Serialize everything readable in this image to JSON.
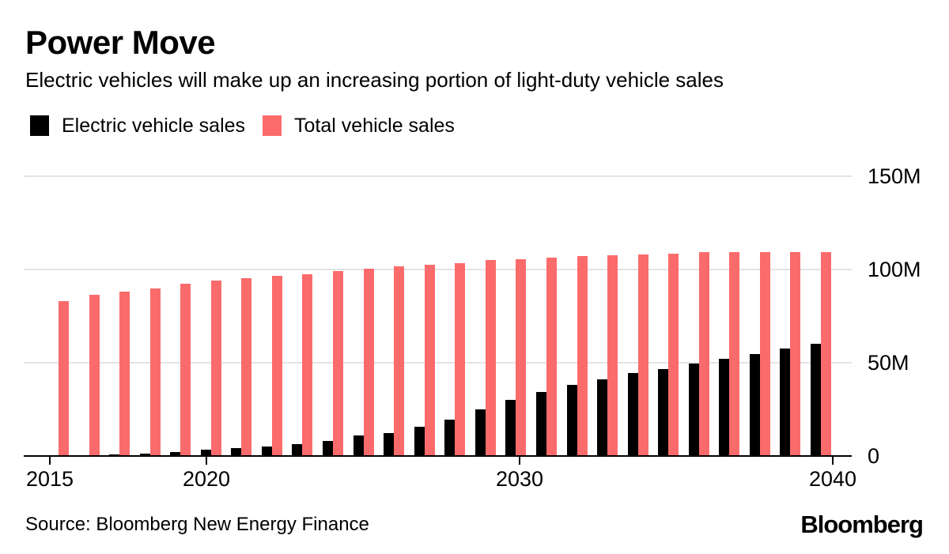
{
  "header": {
    "title": "Power Move",
    "subtitle": "Electric vehicles will make up an increasing portion of light-duty vehicle sales"
  },
  "legend": [
    {
      "label": "Electric vehicle sales",
      "color": "#000000"
    },
    {
      "label": "Total vehicle sales",
      "color": "#fb6b6c"
    }
  ],
  "chart_data": {
    "type": "bar",
    "title": "Power Move",
    "subtitle": "Electric vehicles will make up an increasing portion of light-duty vehicle sales",
    "categories": [
      2015,
      2016,
      2017,
      2018,
      2019,
      2020,
      2021,
      2022,
      2023,
      2024,
      2025,
      2026,
      2027,
      2028,
      2029,
      2030,
      2031,
      2032,
      2033,
      2034,
      2035,
      2036,
      2037,
      2038,
      2039,
      2040
    ],
    "series": [
      {
        "name": "Electric vehicle sales",
        "color": "#000000",
        "values": [
          0.3,
          0.5,
          0.9,
          1.4,
          2.2,
          3.3,
          4.4,
          5.2,
          6.5,
          8,
          11,
          12.5,
          15.5,
          19.5,
          25,
          30,
          34.5,
          38,
          41,
          44.5,
          46.5,
          49.5,
          52,
          54.5,
          57.5,
          60
        ]
      },
      {
        "name": "Total vehicle sales",
        "color": "#fb6b6c",
        "values": [
          83,
          86.5,
          88,
          90,
          92.5,
          94,
          95.5,
          96.5,
          97.5,
          99,
          100.5,
          101.5,
          102.5,
          103.5,
          105,
          105.5,
          106.5,
          107,
          107.5,
          108,
          108.5,
          109.5,
          109.5,
          109.5,
          109.5,
          109.5
        ]
      }
    ],
    "unit": "millions of vehicles",
    "ylim": [
      0,
      150
    ],
    "yticks": [
      {
        "value": 0,
        "label": "0"
      },
      {
        "value": 50,
        "label": "50M"
      },
      {
        "value": 100,
        "label": "100M"
      },
      {
        "value": 150,
        "label": "150M"
      }
    ],
    "xticks": [
      {
        "value": 2015,
        "label": "2015"
      },
      {
        "value": 2020,
        "label": "2020"
      },
      {
        "value": 2030,
        "label": "2030"
      },
      {
        "value": 2040,
        "label": "2040"
      }
    ],
    "grid": "horizontal",
    "gridline_color": "#e3e3e3",
    "legend_position": "top-left",
    "y_axis_side": "right"
  },
  "footer": {
    "source": "Source: Bloomberg New Energy Finance",
    "logo": "Bloomberg"
  }
}
